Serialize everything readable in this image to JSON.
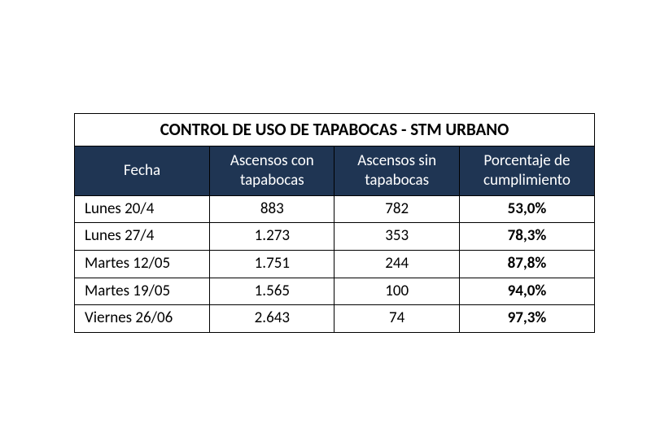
{
  "table": {
    "type": "table",
    "title": "CONTROL DE USO DE TAPABOCAS - STM URBANO",
    "background_color": "#ffffff",
    "border_color": "#000000",
    "title_fontsize": 21,
    "header": {
      "background_color": "#1f3553",
      "text_color": "#ffffff",
      "fontsize": 19
    },
    "columns": [
      {
        "key": "fecha",
        "label": "Fecha",
        "align": "left",
        "width_pct": 26
      },
      {
        "key": "con",
        "label_line1": "Ascensos con",
        "label_line2": "tapabocas",
        "align": "center",
        "width_pct": 24
      },
      {
        "key": "sin",
        "label_line1": "Ascensos sin",
        "label_line2": "tapabocas",
        "align": "center",
        "width_pct": 24
      },
      {
        "key": "pct",
        "label_line1": "Porcentaje de",
        "label_line2": "cumplimiento",
        "align": "center",
        "bold": true,
        "width_pct": 26
      }
    ],
    "rows": [
      {
        "fecha": "Lunes 20/4",
        "con": "883",
        "sin": "782",
        "pct": "53,0%"
      },
      {
        "fecha": "Lunes 27/4",
        "con": "1.273",
        "sin": "353",
        "pct": "78,3%"
      },
      {
        "fecha": "Martes 12/05",
        "con": "1.751",
        "sin": "244",
        "pct": "87,8%"
      },
      {
        "fecha": "Martes 19/05",
        "con": "1.565",
        "sin": "100",
        "pct": "94,0%"
      },
      {
        "fecha": "Viernes 26/06",
        "con": "2.643",
        "sin": "74",
        "pct": "97,3%"
      }
    ],
    "body_fontsize": 19
  }
}
